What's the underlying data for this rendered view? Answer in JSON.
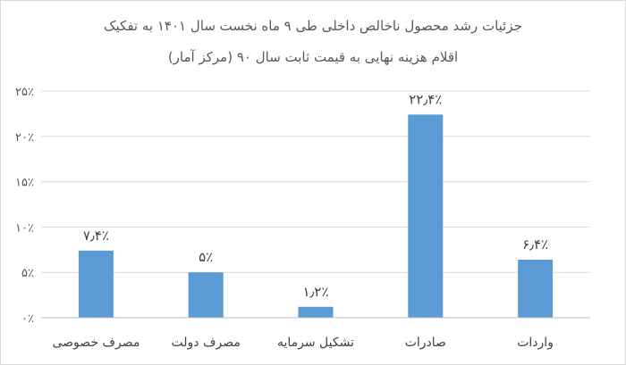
{
  "chart_data": {
    "type": "bar",
    "title": "جزئیات رشد محصول ناخالص داخلی طی ۹ ماه نخست سال ۱۴۰۱ به تفکیک",
    "subtitle": "اقلام هزینه نهایی به قیمت ثابت سال ۹۰ (مرکز آمار)",
    "categories": [
      "مصرف خصوصی",
      "مصرف دولت",
      "تشکیل سرمایه",
      "صادرات",
      "واردات"
    ],
    "values": [
      7.4,
      5,
      1.2,
      22.4,
      6.4
    ],
    "data_labels": [
      "۷٫۴٪",
      "۵٪",
      "۱٫۲٪",
      "۲۲٫۴٪",
      "۶٫۴٪"
    ],
    "y_ticks": [
      0,
      5,
      10,
      15,
      20,
      25
    ],
    "y_tick_labels": [
      "۰٪",
      "۵٪",
      "۱۰٪",
      "۱۵٪",
      "۲۰٪",
      "۲۵٪"
    ],
    "ylim": [
      0,
      25
    ],
    "xlabel": "",
    "ylabel": "",
    "grid": true,
    "legend": "none",
    "bar_color": "#5b9bd5",
    "grid_color": "#d9d9d9"
  }
}
